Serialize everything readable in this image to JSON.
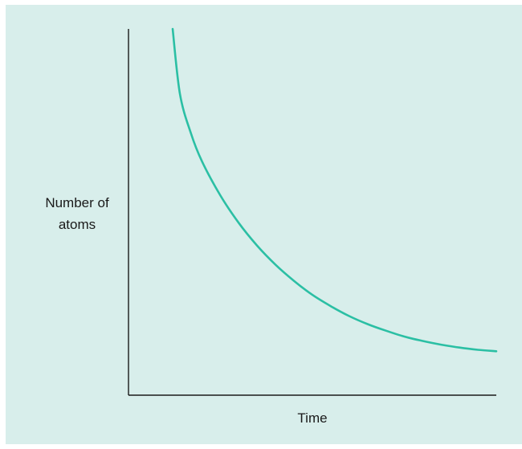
{
  "chart_data": {
    "type": "line",
    "title": "",
    "xlabel": "Time",
    "ylabel_lines": [
      "Number of",
      "atoms"
    ],
    "xlim": [
      0,
      10
    ],
    "ylim": [
      0,
      10
    ],
    "grid": false,
    "legend": "none",
    "series": [
      {
        "x": [
          1.2,
          1.4,
          1.7,
          2.0,
          2.5,
          3.0,
          3.5,
          4.0,
          4.5,
          5.0,
          5.5,
          6.0,
          6.5,
          7.0,
          7.5,
          8.0,
          8.5,
          9.0,
          9.5,
          10.0
        ],
        "values": [
          10.0,
          8.22,
          7.14,
          6.38,
          5.45,
          4.7,
          4.08,
          3.56,
          3.12,
          2.74,
          2.43,
          2.16,
          1.94,
          1.76,
          1.6,
          1.48,
          1.38,
          1.3,
          1.24,
          1.2
        ]
      }
    ]
  },
  "colors": {
    "background": "#d8eeeb",
    "axis": "#1a1a1a",
    "curve": "#2bbfa4"
  }
}
